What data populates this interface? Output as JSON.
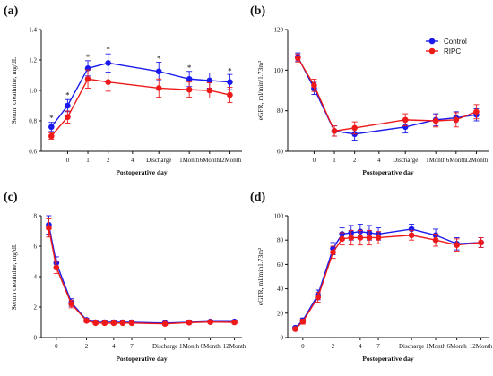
{
  "colors": {
    "control": "#1a1aee",
    "ripc": "#ee1a1a",
    "axis": "#111111",
    "bg": "#ffffff"
  },
  "legend": {
    "control": "Control",
    "ripc": "RIPC"
  },
  "chart_data": [
    {
      "panel": "(a)",
      "type": "line",
      "xlabel": "Postoperative day",
      "ylabel": "Serum creatinine, mg/dL",
      "ylim": [
        0.6,
        1.4
      ],
      "yticks": [
        "0.6",
        "0.8",
        "1.0",
        "1.2",
        "1.4"
      ],
      "xticks": [
        "0",
        "1",
        "2",
        "4",
        "Discharge",
        "1Month",
        "6Month",
        "12Month"
      ],
      "x": [
        -0.8,
        0,
        1,
        2,
        4.5,
        6,
        7,
        8
      ],
      "xrange": [
        -1.3,
        8.6
      ],
      "series": [
        {
          "name": "Control",
          "color": "#1a1aee",
          "values": [
            0.76,
            0.9,
            1.145,
            1.18,
            1.125,
            1.075,
            1.065,
            1.055
          ],
          "err": [
            0.03,
            0.04,
            0.05,
            0.06,
            0.06,
            0.05,
            0.05,
            0.05
          ]
        },
        {
          "name": "RIPC",
          "color": "#ee1a1a",
          "values": [
            0.7,
            0.825,
            1.075,
            1.055,
            1.015,
            1.005,
            1.0,
            0.97
          ],
          "err": [
            0.02,
            0.04,
            0.06,
            0.06,
            0.06,
            0.05,
            0.05,
            0.05
          ]
        }
      ],
      "annotations": [
        {
          "text": "*",
          "x": -0.8,
          "y": 0.8
        },
        {
          "text": "*",
          "x": 0,
          "y": 0.95
        },
        {
          "text": "*",
          "x": 1,
          "y": 1.2
        },
        {
          "text": "*",
          "x": 2,
          "y": 1.25
        },
        {
          "text": "*",
          "x": 4.5,
          "y": 1.19
        },
        {
          "text": "*",
          "x": 6,
          "y": 1.13
        },
        {
          "text": "*",
          "x": 8,
          "y": 1.11
        }
      ],
      "legend": false
    },
    {
      "panel": "(b)",
      "type": "line",
      "xlabel": "Postoperative day",
      "ylabel": "eGFR, ml/min/1.73m²",
      "ylim": [
        60,
        120
      ],
      "yticks": [
        "60",
        "80",
        "100",
        "120"
      ],
      "xticks": [
        "0",
        "1",
        "2",
        "4",
        "Discharge",
        "1Month",
        "6Month",
        "12Month"
      ],
      "x": [
        -0.8,
        0,
        1,
        2,
        4.5,
        6,
        7,
        8
      ],
      "xrange": [
        -1.3,
        8.6
      ],
      "series": [
        {
          "name": "Control",
          "color": "#1a1aee",
          "values": [
            106.5,
            91,
            70,
            68.5,
            72,
            75.5,
            76.5,
            78
          ],
          "err": [
            2,
            3,
            2.5,
            3,
            3,
            3,
            3,
            3
          ]
        },
        {
          "name": "RIPC",
          "color": "#ee1a1a",
          "values": [
            106,
            92.5,
            70,
            71.5,
            75.5,
            75,
            75.5,
            79.5
          ],
          "err": [
            2,
            3,
            2.5,
            3,
            3,
            3,
            3.5,
            3.5
          ]
        }
      ],
      "annotations": [],
      "legend": true
    },
    {
      "panel": "(c)",
      "type": "line",
      "xlabel": "Postoperative day",
      "ylabel": "Serum creatinine, mg/dL",
      "ylim": [
        0,
        8
      ],
      "yticks": [
        "0",
        "2",
        "4",
        "6",
        "8"
      ],
      "xticks": [
        "0",
        "2",
        "4",
        "7",
        "Discharge",
        "1Month",
        "6Month",
        "12Month"
      ],
      "x": [
        -0.5,
        0,
        1,
        2,
        2.6,
        3.2,
        3.8,
        4.4,
        5,
        7.2,
        8.8,
        10.2,
        11.8
      ],
      "xrange": [
        -1.0,
        12.3
      ],
      "series": [
        {
          "name": "Control",
          "color": "#1a1aee",
          "values": [
            7.4,
            4.9,
            2.3,
            1.15,
            1.0,
            1.0,
            1.0,
            1.0,
            1.0,
            0.95,
            1.0,
            1.05,
            1.05
          ],
          "err": [
            0.6,
            0.4,
            0.25,
            0.1,
            0.08,
            0.08,
            0.08,
            0.08,
            0.08,
            0.1,
            0.08,
            0.08,
            0.1
          ]
        },
        {
          "name": "RIPC",
          "color": "#ee1a1a",
          "values": [
            7.2,
            4.6,
            2.2,
            1.1,
            0.95,
            0.95,
            0.95,
            0.95,
            0.95,
            0.9,
            0.98,
            1.02,
            1.0
          ],
          "err": [
            0.6,
            0.4,
            0.25,
            0.1,
            0.08,
            0.08,
            0.08,
            0.08,
            0.08,
            0.1,
            0.08,
            0.08,
            0.1
          ]
        }
      ],
      "annotations": [],
      "legend": false
    },
    {
      "panel": "(d)",
      "type": "line",
      "xlabel": "Postoperative day",
      "ylabel": "eGFR, ml/min1.73m²",
      "ylim": [
        0,
        100
      ],
      "yticks": [
        "0",
        "20",
        "40",
        "60",
        "80",
        "100"
      ],
      "xticks": [
        "0",
        "2",
        "4",
        "7",
        "Discharge",
        "1Month",
        "6Month",
        "12Month"
      ],
      "x": [
        -0.5,
        0,
        1,
        2,
        2.6,
        3.2,
        3.8,
        4.4,
        5,
        7.2,
        8.8,
        10.2,
        11.8
      ],
      "xrange": [
        -1.0,
        12.3
      ],
      "series": [
        {
          "name": "Control",
          "color": "#1a1aee",
          "values": [
            8,
            14,
            35,
            73,
            85,
            86,
            87,
            86,
            85,
            89,
            84,
            77,
            78
          ],
          "err": [
            1,
            2,
            4,
            5,
            5,
            6,
            6,
            6,
            5,
            4,
            5,
            5,
            4
          ]
        },
        {
          "name": "RIPC",
          "color": "#ee1a1a",
          "values": [
            7,
            13,
            33,
            70,
            81,
            82,
            82,
            82,
            82,
            84,
            80,
            76,
            78
          ],
          "err": [
            1,
            2,
            4,
            5,
            5,
            6,
            6,
            6,
            5,
            4,
            5,
            5,
            4
          ]
        }
      ],
      "annotations": [],
      "legend": false
    }
  ]
}
